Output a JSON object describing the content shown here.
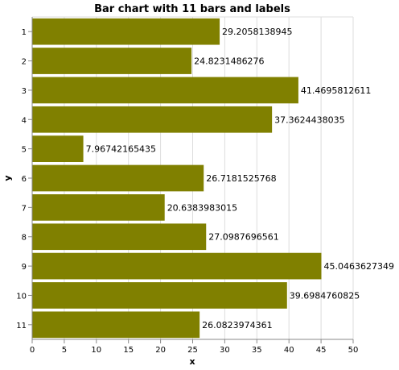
{
  "chart_data": {
    "type": "bar",
    "orientation": "horizontal",
    "title": "Bar chart with 11 bars and labels",
    "xlabel": "x",
    "ylabel": "y",
    "xlim": [
      0,
      50
    ],
    "x_ticks": [
      "0",
      "5",
      "10",
      "15",
      "20",
      "25",
      "30",
      "35",
      "40",
      "45",
      "50"
    ],
    "categories": [
      "1",
      "2",
      "3",
      "4",
      "5",
      "6",
      "7",
      "8",
      "9",
      "10",
      "11"
    ],
    "values": [
      29.2058138945,
      24.8231486276,
      41.4695812611,
      37.3624438035,
      7.96742165435,
      26.7181525768,
      20.6383983015,
      27.0987696561,
      45.0463627349,
      39.6984760825,
      26.0823974361
    ],
    "labels": [
      "29.2058138945",
      "24.8231486276",
      "41.4695812611",
      "37.3624438035",
      "7.96742165435",
      "26.7181525768",
      "20.6383983015",
      "27.0987696561",
      "45.0463627349",
      "39.6984760825",
      "26.0823974361"
    ],
    "bar_color": "#808000",
    "grid": true
  }
}
